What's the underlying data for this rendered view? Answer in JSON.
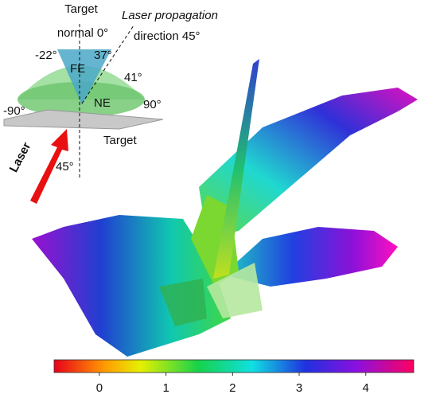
{
  "inset": {
    "target_top": "Target",
    "normal": "normal 0°",
    "laser_prop": "Laser propagation",
    "direction": "direction 45°",
    "angle_neg22": "-22°",
    "angle_37": "37°",
    "fe": "FE",
    "angle_41": "41°",
    "ne": "NE",
    "angle_neg90": "-90°",
    "angle_90": "90°",
    "target_bottom": "Target",
    "laser": "Laser",
    "angle_45": "45°"
  },
  "colorbar": {
    "lim": [
      -0.68,
      4.72
    ],
    "ticks": [
      0,
      1,
      2,
      3,
      4
    ]
  }
}
